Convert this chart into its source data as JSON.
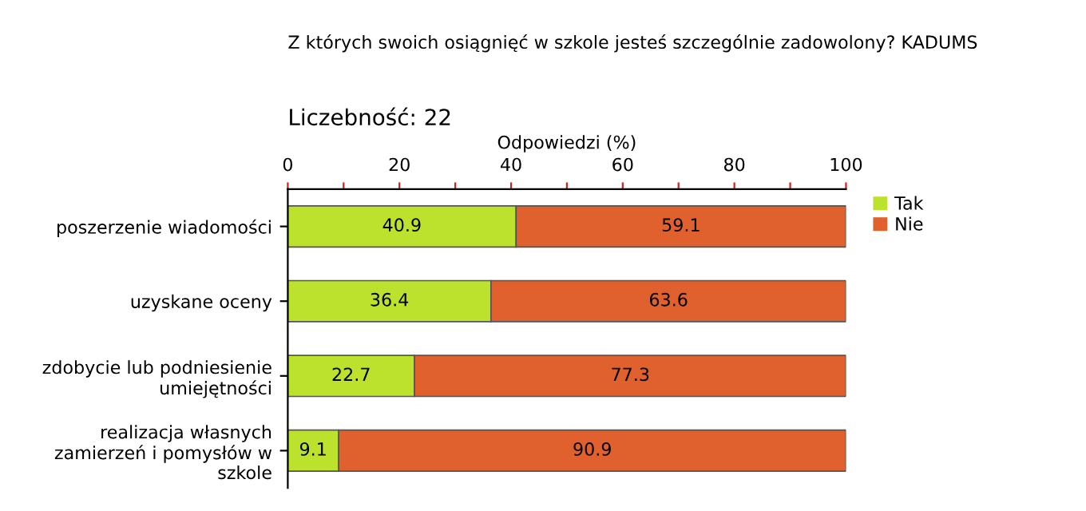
{
  "chart_data": {
    "type": "bar",
    "orientation": "horizontal",
    "stacked": true,
    "title": "Z których swoich osiągnięć w szkole jesteś szczególnie zadowolony? KADUMS",
    "subtitle": "Liczebność: 22",
    "xlabel": "Odpowiedzi (%)",
    "categories": [
      "poszerzenie wiadomości",
      "uzyskane oceny",
      "zdobycie lub podniesienie\numiejętności",
      "realizacja własnych\nzamierzeń i pomysłów w\nszkole"
    ],
    "series": [
      {
        "name": "Tak",
        "color": "#bde22d",
        "values": [
          40.9,
          36.4,
          22.7,
          9.1
        ]
      },
      {
        "name": "Nie",
        "color": "#e0612d",
        "values": [
          59.1,
          63.6,
          77.3,
          90.9
        ]
      }
    ],
    "xlim": [
      0,
      100
    ],
    "xticks": [
      0,
      {
        "value": 10,
        "label": null
      },
      20,
      {
        "value": 30,
        "label": null
      },
      40,
      {
        "value": 50,
        "label": null
      },
      60,
      {
        "value": 70,
        "label": null
      },
      80,
      {
        "value": 90,
        "label": null
      },
      100
    ],
    "data_labels": true,
    "legend": "top right",
    "grid": false
  }
}
